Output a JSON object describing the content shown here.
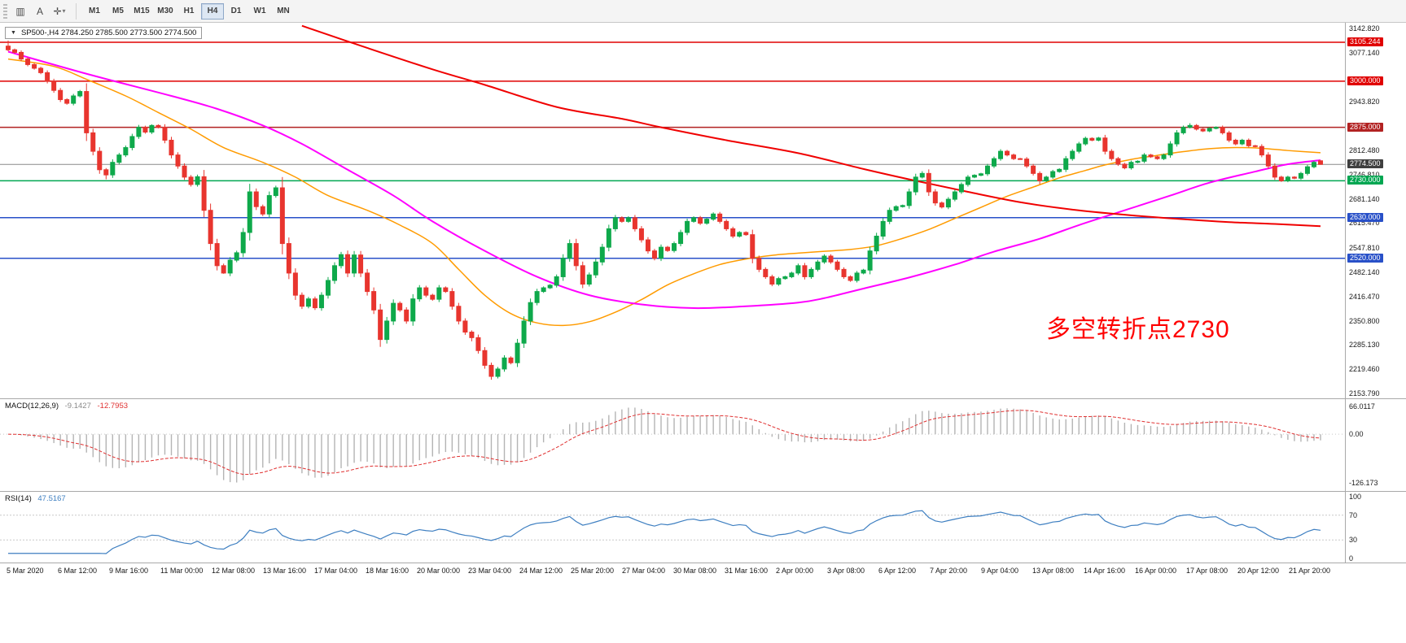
{
  "toolbar": {
    "tools": [
      {
        "name": "chart-window-icon",
        "glyph": "▥"
      },
      {
        "name": "text-annotation-icon",
        "glyph": "A"
      },
      {
        "name": "crosshair-icon",
        "glyph": "✛"
      }
    ],
    "tool_dropdown_glyph": "▾",
    "timeframes": [
      "M1",
      "M5",
      "M15",
      "M30",
      "H1",
      "H4",
      "D1",
      "W1",
      "MN"
    ],
    "active_timeframe": "H4"
  },
  "chart": {
    "title_arrow": "▼",
    "title": "SP500-,H4  2784.250 2785.500 2773.500 2774.500",
    "symbol": "SP500-",
    "timeframe": "H4",
    "ohlc": {
      "open": "2784.250",
      "high": "2785.500",
      "low": "2773.500",
      "close": "2774.500"
    },
    "annotation": {
      "text": "多空转折点2730",
      "color": "#FF0000"
    }
  },
  "price_axis": {
    "ticks": [
      "3142.820",
      "3077.140",
      "2943.820",
      "2812.480",
      "2746.810",
      "2681.140",
      "2615.470",
      "2547.810",
      "2482.140",
      "2416.470",
      "2350.800",
      "2285.130",
      "2219.460",
      "2153.790"
    ],
    "current": {
      "label": "2774.500",
      "price": 2774.5,
      "bg": "#3F3F3F",
      "line_color": "#8a8a8a"
    }
  },
  "levels": [
    {
      "label": "3105.244",
      "price": 3105.244,
      "color": "#E00000"
    },
    {
      "label": "3000.000",
      "price": 3000.0,
      "color": "#E00000"
    },
    {
      "label": "2875.000",
      "price": 2875.0,
      "color": "#B22222"
    },
    {
      "label": "2730.000",
      "price": 2730.0,
      "color": "#00A651"
    },
    {
      "label": "2630.000",
      "price": 2630.0,
      "color": "#2850C8"
    },
    {
      "label": "2520.000",
      "price": 2520.0,
      "color": "#2850C8"
    }
  ],
  "time_axis": [
    "5 Mar 2020",
    "6 Mar 12:00",
    "9 Mar 16:00",
    "11 Mar 00:00",
    "12 Mar 08:00",
    "13 Mar 16:00",
    "17 Mar 04:00",
    "18 Mar 16:00",
    "20 Mar 00:00",
    "23 Mar 04:00",
    "24 Mar 12:00",
    "25 Mar 20:00",
    "27 Mar 04:00",
    "30 Mar 08:00",
    "31 Mar 16:00",
    "2 Apr 00:00",
    "3 Apr 08:00",
    "6 Apr 12:00",
    "7 Apr 20:00",
    "9 Apr 04:00",
    "13 Apr 08:00",
    "14 Apr 16:00",
    "16 Apr 00:00",
    "17 Apr 08:00",
    "20 Apr 12:00",
    "21 Apr 20:00"
  ],
  "indicators": {
    "macd": {
      "label": "MACD(12,26,9)",
      "value_main": "-9.1427",
      "value_signal": "-12.7953",
      "axis": [
        "66.0117",
        "0.00",
        "-126.173"
      ],
      "params": [
        12,
        26,
        9
      ]
    },
    "rsi": {
      "label": "RSI(14)",
      "value": "47.5167",
      "axis": [
        "100",
        "70",
        "30",
        "0"
      ],
      "period": 14
    }
  },
  "colors": {
    "up": "#0EA94B",
    "down": "#E8352E",
    "ma_fast": "#FF9B00",
    "ma_mid": "#FF00FF",
    "ma_slow": "#F00000",
    "macd_hist": "#B4B4B4",
    "macd_signal": "#E03030",
    "rsi": "#3E7FC1",
    "level_dotted": "#C8C8C8"
  },
  "chart_data": {
    "type": "candlestick",
    "price_range": [
      2153.79,
      3142.82
    ],
    "first_open": 3095,
    "closes": [
      3085,
      3078,
      3060,
      3045,
      3035,
      3023,
      3000,
      2975,
      2950,
      2940,
      2960,
      2972,
      2860,
      2810,
      2760,
      2746,
      2780,
      2800,
      2820,
      2850,
      2875,
      2862,
      2880,
      2875,
      2840,
      2800,
      2770,
      2740,
      2720,
      2741,
      2650,
      2560,
      2500,
      2480,
      2515,
      2535,
      2590,
      2700,
      2660,
      2640,
      2690,
      2711,
      2560,
      2480,
      2420,
      2390,
      2410,
      2386,
      2420,
      2460,
      2500,
      2530,
      2480,
      2529,
      2480,
      2430,
      2380,
      2300,
      2350,
      2398,
      2380,
      2350,
      2410,
      2440,
      2420,
      2409,
      2440,
      2430,
      2390,
      2350,
      2320,
      2305,
      2270,
      2230,
      2200,
      2220,
      2250,
      2237,
      2290,
      2350,
      2400,
      2430,
      2440,
      2447,
      2470,
      2520,
      2560,
      2500,
      2450,
      2475,
      2510,
      2550,
      2600,
      2630,
      2620,
      2630,
      2600,
      2570,
      2540,
      2520,
      2550,
      2541,
      2560,
      2590,
      2620,
      2630,
      2615,
      2626,
      2640,
      2620,
      2600,
      2580,
      2590,
      2584,
      2520,
      2490,
      2470,
      2450,
      2465,
      2470,
      2480,
      2500,
      2470,
      2490,
      2510,
      2526,
      2510,
      2490,
      2470,
      2460,
      2480,
      2488,
      2540,
      2580,
      2620,
      2650,
      2660,
      2663,
      2700,
      2740,
      2750,
      2700,
      2670,
      2659,
      2680,
      2700,
      2720,
      2740,
      2745,
      2749,
      2770,
      2790,
      2810,
      2800,
      2790,
      2789,
      2770,
      2750,
      2730,
      2740,
      2755,
      2761,
      2790,
      2810,
      2830,
      2845,
      2840,
      2846,
      2810,
      2790,
      2775,
      2765,
      2780,
      2783,
      2800,
      2795,
      2790,
      2800,
      2830,
      2860,
      2875,
      2880,
      2870,
      2865,
      2872,
      2875,
      2860,
      2840,
      2830,
      2840,
      2825,
      2823,
      2800,
      2770,
      2740,
      2730,
      2740,
      2737,
      2750,
      2768,
      2780,
      2774.5
    ],
    "open_overrides": {
      "201": 2784.25
    },
    "wick_overrides": {
      "0": [
        3110,
        null
      ],
      "15": [
        null,
        2734
      ],
      "22": [
        2883,
        null
      ],
      "33": [
        null,
        2478
      ],
      "47": [
        null,
        2380
      ],
      "57": [
        null,
        2280
      ],
      "71": [
        null,
        2295
      ],
      "74": [
        null,
        2191
      ],
      "86": [
        2571,
        null
      ],
      "140": [
        2756,
        null
      ],
      "158": [
        null,
        2721
      ],
      "181": [
        2886,
        null
      ],
      "195": [
        null,
        2727
      ],
      "201": [
        2785.5,
        2773.5
      ]
    },
    "ma_lines": [
      {
        "name": "ma-fast-orange",
        "width": 1.5,
        "points": [
          [
            0,
            3060
          ],
          [
            7,
            3040
          ],
          [
            12,
            3005
          ],
          [
            18,
            2960
          ],
          [
            23,
            2915
          ],
          [
            28,
            2870
          ],
          [
            33,
            2820
          ],
          [
            39,
            2780
          ],
          [
            44,
            2740
          ],
          [
            49,
            2690
          ],
          [
            55,
            2650
          ],
          [
            60,
            2610
          ],
          [
            65,
            2560
          ],
          [
            69,
            2490
          ],
          [
            73,
            2420
          ],
          [
            77,
            2370
          ],
          [
            81,
            2345
          ],
          [
            85,
            2338
          ],
          [
            89,
            2348
          ],
          [
            93,
            2374
          ],
          [
            97,
            2408
          ],
          [
            101,
            2448
          ],
          [
            105,
            2478
          ],
          [
            109,
            2503
          ],
          [
            113,
            2518
          ],
          [
            117,
            2528
          ],
          [
            121,
            2534
          ],
          [
            125,
            2539
          ],
          [
            129,
            2544
          ],
          [
            133,
            2554
          ],
          [
            137,
            2574
          ],
          [
            141,
            2598
          ],
          [
            145,
            2628
          ],
          [
            149,
            2658
          ],
          [
            153,
            2688
          ],
          [
            157,
            2713
          ],
          [
            161,
            2738
          ],
          [
            165,
            2758
          ],
          [
            168,
            2773
          ],
          [
            172,
            2788
          ],
          [
            176,
            2799
          ],
          [
            180,
            2809
          ],
          [
            184,
            2817
          ],
          [
            188,
            2820
          ],
          [
            192,
            2818
          ],
          [
            196,
            2812
          ],
          [
            201,
            2806
          ]
        ]
      },
      {
        "name": "ma-mid-magenta",
        "width": 2,
        "points": [
          [
            0,
            3080
          ],
          [
            12,
            3020
          ],
          [
            25,
            2960
          ],
          [
            32,
            2925
          ],
          [
            39,
            2880
          ],
          [
            45,
            2830
          ],
          [
            52,
            2760
          ],
          [
            59,
            2690
          ],
          [
            65,
            2620
          ],
          [
            73,
            2540
          ],
          [
            81,
            2470
          ],
          [
            89,
            2420
          ],
          [
            97,
            2395
          ],
          [
            105,
            2385
          ],
          [
            113,
            2390
          ],
          [
            121,
            2400
          ],
          [
            125,
            2412
          ],
          [
            131,
            2438
          ],
          [
            138,
            2468
          ],
          [
            145,
            2503
          ],
          [
            151,
            2538
          ],
          [
            158,
            2573
          ],
          [
            164,
            2610
          ],
          [
            171,
            2650
          ],
          [
            178,
            2690
          ],
          [
            184,
            2725
          ],
          [
            191,
            2755
          ],
          [
            196,
            2775
          ],
          [
            201,
            2786
          ]
        ]
      },
      {
        "name": "ma-slow-red",
        "width": 2,
        "points": [
          [
            45,
            3150
          ],
          [
            55,
            3090
          ],
          [
            65,
            3032
          ],
          [
            73,
            2990
          ],
          [
            84,
            2930
          ],
          [
            94,
            2898
          ],
          [
            100,
            2875
          ],
          [
            110,
            2840
          ],
          [
            121,
            2805
          ],
          [
            131,
            2762
          ],
          [
            139,
            2730
          ],
          [
            147,
            2700
          ],
          [
            155,
            2672
          ],
          [
            163,
            2652
          ],
          [
            171,
            2638
          ],
          [
            179,
            2627
          ],
          [
            187,
            2618
          ],
          [
            194,
            2613
          ],
          [
            201,
            2607
          ]
        ]
      }
    ]
  }
}
